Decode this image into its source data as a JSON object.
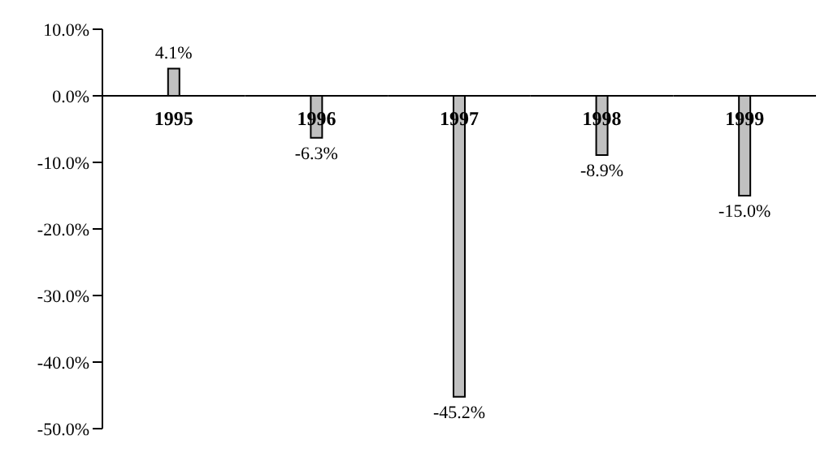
{
  "chart_data": {
    "type": "bar",
    "categories": [
      "1995",
      "1996",
      "1997",
      "1998",
      "1999"
    ],
    "values": [
      4.1,
      -6.3,
      -45.2,
      -8.9,
      -15.0
    ],
    "value_labels": [
      "4.1%",
      "-6.3%",
      "-45.2%",
      "-8.9%",
      "-15.0%"
    ],
    "color": "#c0c0c0",
    "ylim": [
      -50,
      10
    ],
    "yticks": [
      {
        "value": 10,
        "label": "10.0%"
      },
      {
        "value": 0,
        "label": "0.0%"
      },
      {
        "value": -10,
        "label": "-10.0%"
      },
      {
        "value": -20,
        "label": "-20.0%"
      },
      {
        "value": -30,
        "label": "-30.0%"
      },
      {
        "value": -40,
        "label": "-40.0%"
      },
      {
        "value": -50,
        "label": "-50.0%"
      }
    ],
    "grid": false,
    "legend": false
  }
}
